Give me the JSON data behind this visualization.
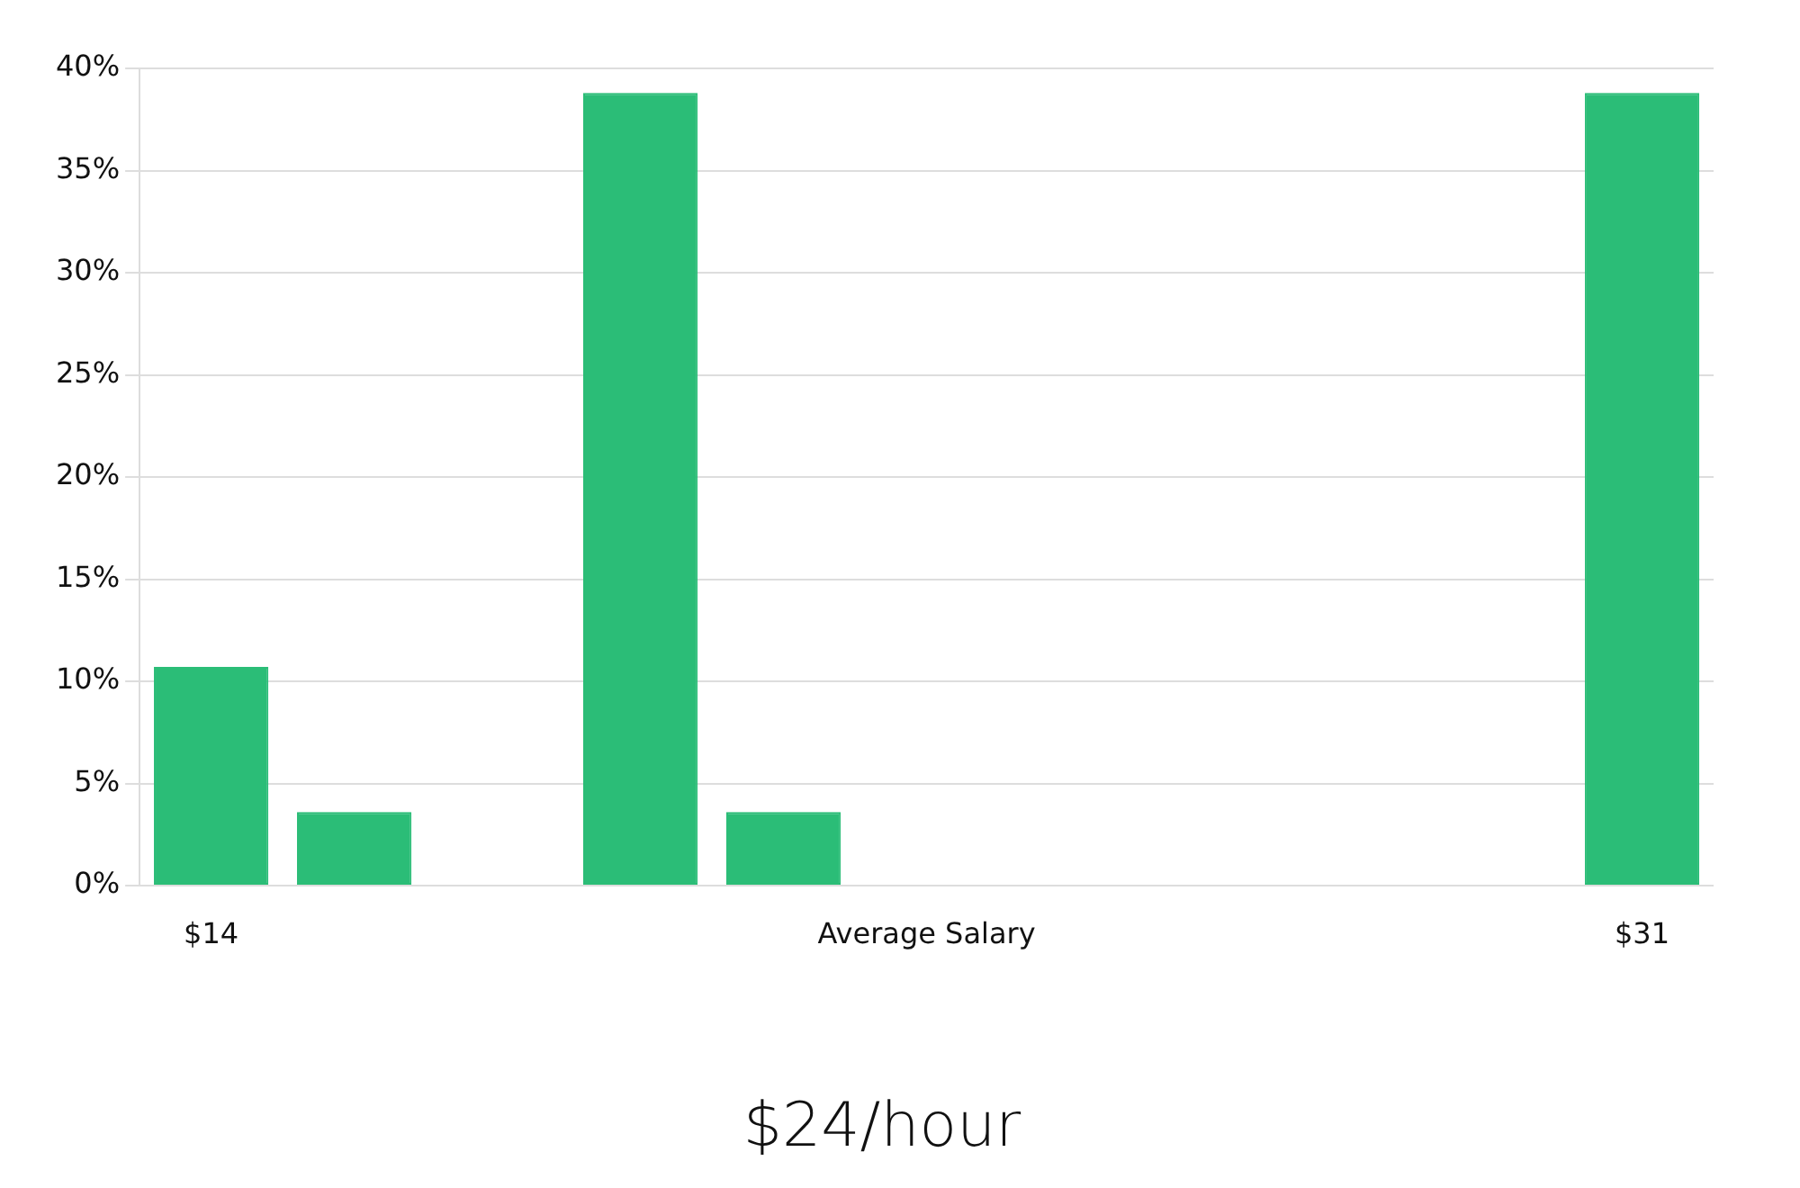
{
  "chart_data": {
    "type": "bar",
    "title": "$24/hour",
    "categories": [
      "$14",
      null,
      null,
      null,
      null,
      "Average Salary",
      null,
      null,
      null,
      null,
      "$31"
    ],
    "values": [
      10.7,
      3.6,
      0,
      38.8,
      3.6,
      0,
      0,
      0,
      0,
      0,
      38.8
    ],
    "colors": [
      "#2bbd77",
      "#2bbd77",
      "#2bbd77",
      "#2bbd77",
      "#2bbd77",
      "#2bbd77",
      "#222222",
      "#2bbd77",
      "#2bbd77",
      "#2bbd77",
      "#2bbd77"
    ],
    "ylim": [
      0,
      40
    ],
    "yticks": [
      {
        "value": 0,
        "label": "0%"
      },
      {
        "value": 5,
        "label": "5%"
      },
      {
        "value": 10,
        "label": "10%"
      },
      {
        "value": 15,
        "label": "15%"
      },
      {
        "value": 20,
        "label": "20%"
      },
      {
        "value": 25,
        "label": "25%"
      },
      {
        "value": 30,
        "label": "30%"
      },
      {
        "value": 35,
        "label": "35%"
      },
      {
        "value": 40,
        "label": "40%"
      }
    ],
    "grid": "y",
    "legend": false
  }
}
